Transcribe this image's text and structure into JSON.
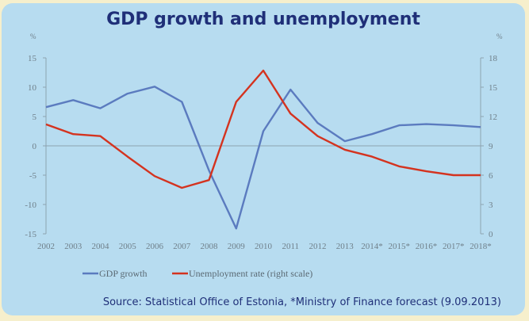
{
  "chart_data": {
    "type": "line",
    "title": "GDP growth and unemployment",
    "source": "Source: Statistical Office of Estonia, *Ministry of Finance forecast (9.09.2013)",
    "categories": [
      "2002",
      "2003",
      "2004",
      "2005",
      "2006",
      "2007",
      "2008",
      "2009",
      "2010",
      "2011",
      "2012",
      "2013",
      "2014*",
      "2015*",
      "2016*",
      "2017*",
      "2018*"
    ],
    "left_unit": "%",
    "right_unit": "%",
    "ylim_left": [
      -15,
      15
    ],
    "ylim_right": [
      0,
      18
    ],
    "left_ticks": [
      "15",
      "10",
      "5",
      "0",
      "-5",
      "-10",
      "-15"
    ],
    "right_ticks": [
      "18",
      "15",
      "12",
      "9",
      "6",
      "3",
      "0"
    ],
    "series": [
      {
        "name": "GDP growth",
        "axis": "left",
        "color": "#5b7bbf",
        "values": [
          6.6,
          7.8,
          6.4,
          8.9,
          10.1,
          7.5,
          -4.2,
          -14.1,
          2.5,
          9.6,
          3.9,
          0.8,
          2.0,
          3.5,
          3.7,
          3.5,
          3.2
        ]
      },
      {
        "name": "Unemployment rate (right scale)",
        "axis": "right",
        "color": "#d4331f",
        "values": [
          11.2,
          10.2,
          10.0,
          7.9,
          5.9,
          4.7,
          5.5,
          13.5,
          16.7,
          12.3,
          10.0,
          8.6,
          7.9,
          6.9,
          6.4,
          6.0,
          6.0
        ]
      }
    ],
    "grid": false,
    "legend_position": "bottom"
  }
}
